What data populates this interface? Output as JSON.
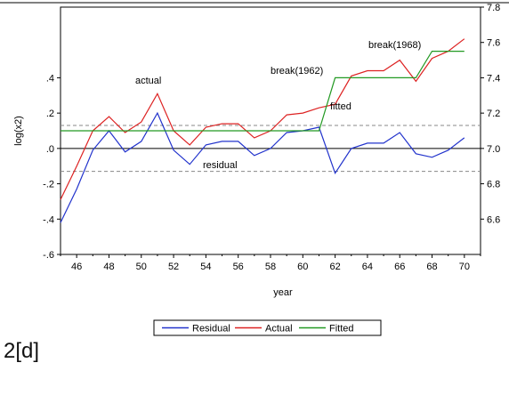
{
  "chart_data": {
    "type": "line",
    "x": [
      45,
      46,
      47,
      48,
      49,
      50,
      51,
      52,
      53,
      54,
      55,
      56,
      57,
      58,
      59,
      60,
      61,
      62,
      63,
      64,
      65,
      66,
      67,
      68,
      69,
      70
    ],
    "xlabel": "year",
    "ylabel": "log(x2)",
    "x_ticks": [
      "46",
      "48",
      "50",
      "52",
      "54",
      "56",
      "58",
      "60",
      "62",
      "64",
      "66",
      "68",
      "70"
    ],
    "left_axis": {
      "range": [
        -0.6,
        0.8
      ],
      "ticks": [
        ".4",
        ".2",
        ".0",
        "-.2",
        "-.4",
        "-.6"
      ]
    },
    "right_axis": {
      "range": [
        6.4,
        7.8
      ],
      "ticks": [
        "7.8",
        "7.6",
        "7.4",
        "7.2",
        "7.0",
        "6.8",
        "6.6"
      ]
    },
    "residual_bands": [
      0.13,
      -0.13
    ],
    "series": [
      {
        "name": "Residual",
        "axis": "left",
        "color": "#2233cc",
        "values": [
          -0.42,
          -0.23,
          -0.01,
          0.1,
          -0.02,
          0.04,
          0.2,
          -0.01,
          -0.09,
          0.02,
          0.04,
          0.04,
          -0.04,
          0.0,
          0.09,
          0.1,
          0.12,
          -0.14,
          0.0,
          0.03,
          0.03,
          0.09,
          -0.03,
          -0.05,
          -0.01,
          0.06
        ]
      },
      {
        "name": "Actual",
        "axis": "right",
        "color": "#dd2222",
        "values": [
          6.71,
          6.9,
          7.1,
          7.18,
          7.09,
          7.15,
          7.31,
          7.1,
          7.02,
          7.12,
          7.14,
          7.14,
          7.06,
          7.1,
          7.19,
          7.2,
          7.23,
          7.25,
          7.41,
          7.44,
          7.44,
          7.5,
          7.38,
          7.51,
          7.55,
          7.62
        ]
      },
      {
        "name": "Fitted",
        "axis": "right",
        "color": "#229922",
        "values": [
          7.1,
          7.1,
          7.1,
          7.1,
          7.1,
          7.1,
          7.1,
          7.1,
          7.1,
          7.1,
          7.1,
          7.1,
          7.1,
          7.1,
          7.1,
          7.1,
          7.1,
          7.4,
          7.4,
          7.4,
          7.4,
          7.4,
          7.4,
          7.55,
          7.55,
          7.55
        ]
      }
    ],
    "annotations": [
      "actual",
      "fitted",
      "residual",
      "break(1962)",
      "break(1968)"
    ],
    "legend": {
      "placement": "bottom",
      "entries": [
        "Residual",
        "Actual",
        "Fitted"
      ]
    },
    "grid": false
  },
  "caption": "2[d]"
}
